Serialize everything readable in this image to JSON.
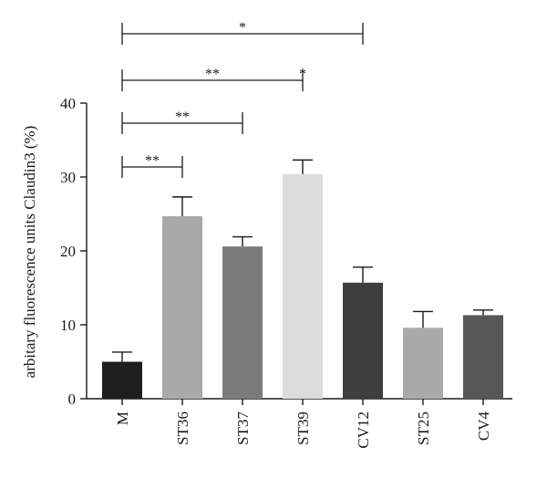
{
  "chart_data": {
    "type": "bar",
    "title": "",
    "xlabel": "",
    "ylabel": "arbitary fluorescence units Claudin3 (%)",
    "ylim": [
      0,
      40
    ],
    "yticks": [
      0,
      10,
      20,
      30,
      40
    ],
    "grid": false,
    "legend": "none",
    "categories": [
      "M",
      "ST36",
      "ST37",
      "ST39",
      "CV12",
      "ST25",
      "CV4"
    ],
    "values": [
      5.0,
      24.7,
      20.6,
      30.4,
      15.7,
      9.6,
      11.3
    ],
    "errors": [
      1.3,
      2.6,
      1.3,
      1.9,
      2.1,
      2.2,
      0.7
    ],
    "colors": [
      "#1e1e1e",
      "#a9a9a9",
      "#7b7b7b",
      "#dcdcdc",
      "#3e3e3e",
      "#a9a9a9",
      "#575757"
    ],
    "significance": [
      {
        "from": "M",
        "to": "ST36",
        "label": "**"
      },
      {
        "from": "M",
        "to": "ST37",
        "label": "**"
      },
      {
        "from": "M",
        "to": "ST39",
        "label": "**",
        "extra_label": "*"
      },
      {
        "from": "M",
        "to": "CV12",
        "label": "*"
      }
    ]
  }
}
